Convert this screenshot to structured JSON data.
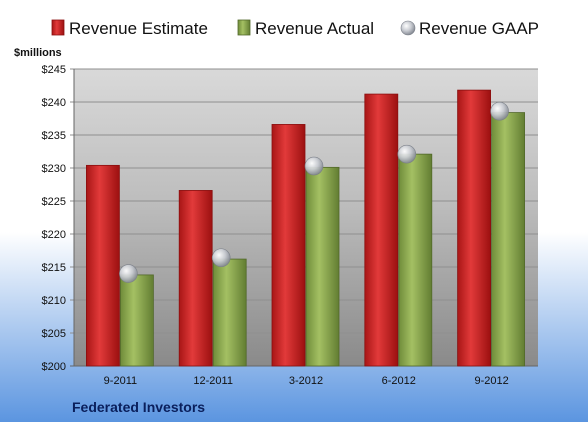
{
  "chart_data": {
    "type": "bar",
    "categories": [
      "9-2011",
      "12-2011",
      "3-2012",
      "6-2012",
      "9-2012"
    ],
    "series": [
      {
        "name": "Revenue Estimate",
        "values": [
          230.4,
          226.6,
          236.6,
          241.2,
          241.8
        ]
      },
      {
        "name": "Revenue Actual",
        "values": [
          213.8,
          216.2,
          230.1,
          232.1,
          238.4
        ]
      }
    ],
    "points": {
      "name": "Revenue GAAP",
      "values": [
        214.0,
        216.4,
        230.3,
        232.1,
        238.6
      ]
    },
    "ylabel": "$millions",
    "ylim": [
      200,
      245
    ],
    "yticks": [
      200,
      205,
      210,
      215,
      220,
      225,
      230,
      235,
      240,
      245
    ],
    "ytick_labels": [
      "$200",
      "$205",
      "$210",
      "$215",
      "$220",
      "$225",
      "$230",
      "$235",
      "$240",
      "$245"
    ],
    "grid": true,
    "legend_position": "top",
    "footer": "Federated Investors",
    "colors": {
      "estimate": "#cc2222",
      "actual": "#8aa84e",
      "gaap": "#b8bcc4"
    }
  }
}
